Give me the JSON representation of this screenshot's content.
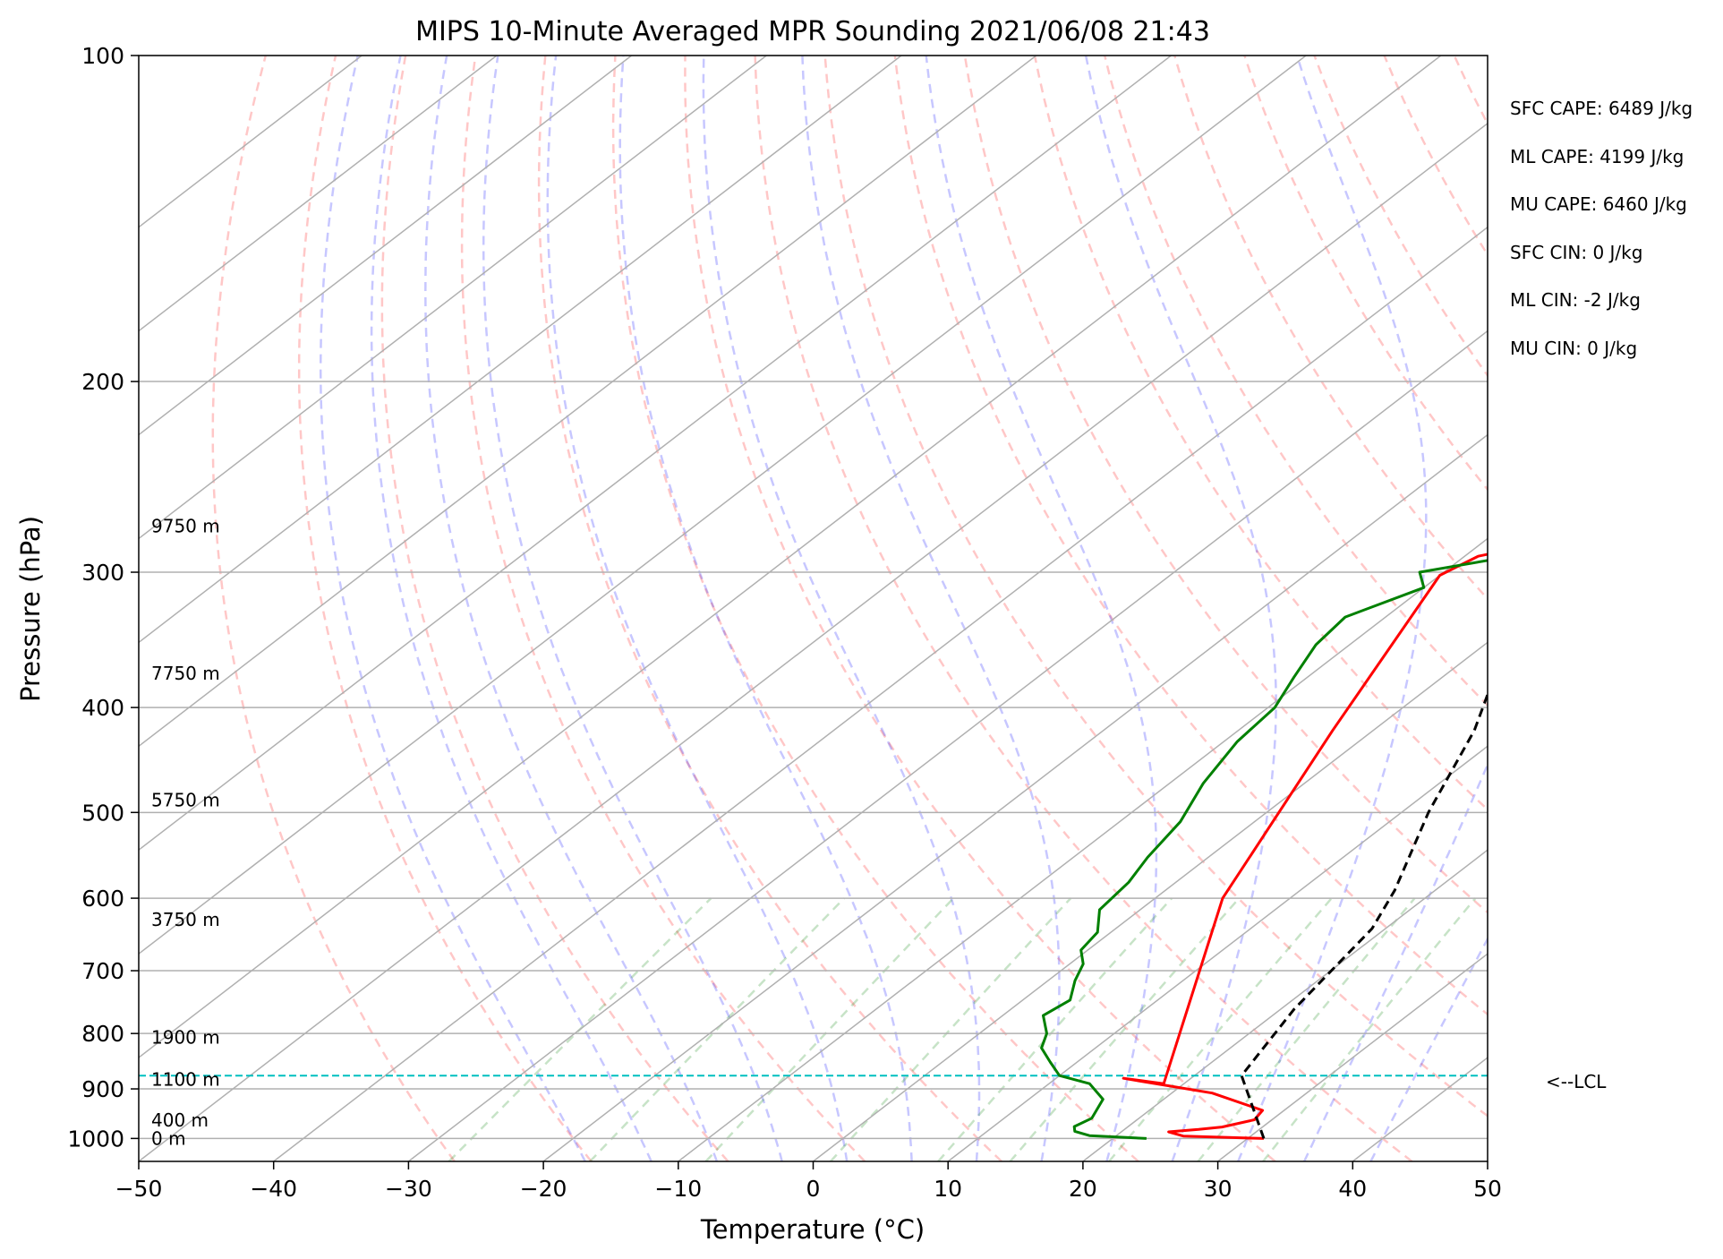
{
  "chart_data": {
    "type": "line",
    "title": "MIPS 10-Minute Averaged MPR Sounding 2021/06/08 21:43",
    "xlabel": "Temperature (°C)",
    "ylabel": "Pressure (hPa)",
    "xlim": [
      -50,
      50
    ],
    "ylim": [
      1050,
      100
    ],
    "y_scale": "log",
    "skew": "skew-T log-p",
    "x_ticks": [
      "−50",
      "−40",
      "−30",
      "−20",
      "−10",
      "0",
      "10",
      "20",
      "30",
      "40",
      "50"
    ],
    "y_ticks": [
      "100",
      "200",
      "300",
      "400",
      "500",
      "600",
      "700",
      "800",
      "900",
      "1000"
    ],
    "grid": true,
    "height_labels": [
      {
        "text": "9750 m",
        "p": 272
      },
      {
        "text": "7750 m",
        "p": 372
      },
      {
        "text": "5750 m",
        "p": 487
      },
      {
        "text": "3750 m",
        "p": 628
      },
      {
        "text": "1900 m",
        "p": 807
      },
      {
        "text": "1100 m",
        "p": 882
      },
      {
        "text": "400 m",
        "p": 962
      },
      {
        "text": "0 m",
        "p": 1000
      }
    ],
    "stats": [
      "SFC CAPE: 6489 J/kg",
      "ML CAPE: 4199 J/kg",
      "MU CAPE: 6460 J/kg",
      "SFC CIN: 0 J/kg",
      "ML CIN: -2 J/kg",
      "MU CIN: 0 J/kg"
    ],
    "lcl": {
      "label": "<--LCL",
      "p": 875
    },
    "series": [
      {
        "color": "#ff0000",
        "points": [
          [
            31.2,
            1000
          ],
          [
            25,
            995
          ],
          [
            23.5,
            986
          ],
          [
            25.5,
            981
          ],
          [
            27,
            976
          ],
          [
            28.7,
            961
          ],
          [
            28.4,
            942
          ],
          [
            23,
            908
          ],
          [
            15,
            880
          ],
          [
            18.5,
            890
          ],
          [
            5,
            600
          ],
          [
            -3,
            420
          ],
          [
            -10,
            302
          ],
          [
            -9,
            290
          ],
          [
            -3,
            276
          ],
          [
            1,
            266
          ],
          [
            2,
            263
          ]
        ]
      },
      {
        "color": "#008000",
        "points": [
          [
            22.5,
            1000
          ],
          [
            18,
            994
          ],
          [
            16.5,
            985
          ],
          [
            16,
            975
          ],
          [
            16.5,
            958
          ],
          [
            15.5,
            920
          ],
          [
            13,
            890
          ],
          [
            10,
            875
          ],
          [
            8,
            850
          ],
          [
            6,
            825
          ],
          [
            5,
            800
          ],
          [
            3,
            770
          ],
          [
            3.5,
            745
          ],
          [
            2,
            715
          ],
          [
            1,
            690
          ],
          [
            -0.5,
            670
          ],
          [
            -1,
            645
          ],
          [
            -3,
            615
          ],
          [
            -3.5,
            580
          ],
          [
            -4.5,
            550
          ],
          [
            -5.5,
            510
          ],
          [
            -7.5,
            470
          ],
          [
            -9,
            430
          ],
          [
            -9.5,
            400
          ],
          [
            -11,
            375
          ],
          [
            -12.5,
            350
          ],
          [
            -13,
            330
          ],
          [
            -10,
            310
          ],
          [
            -11.8,
            300
          ],
          [
            -6.5,
            290
          ],
          [
            -8.8,
            285
          ],
          [
            -9.7,
            272
          ],
          [
            -6.5,
            262
          ]
        ]
      },
      {
        "color": "#000000",
        "dash": "dashed",
        "points": [
          [
            31.2,
            1000
          ],
          [
            23.5,
            875
          ],
          [
            21,
            760
          ],
          [
            19,
            640
          ],
          [
            17,
            590
          ],
          [
            12,
            500
          ],
          [
            7.5,
            420
          ],
          [
            2.5,
            360
          ],
          [
            -3,
            302
          ],
          [
            -4.5,
            282
          ],
          [
            -5.5,
            263
          ]
        ]
      }
    ]
  }
}
